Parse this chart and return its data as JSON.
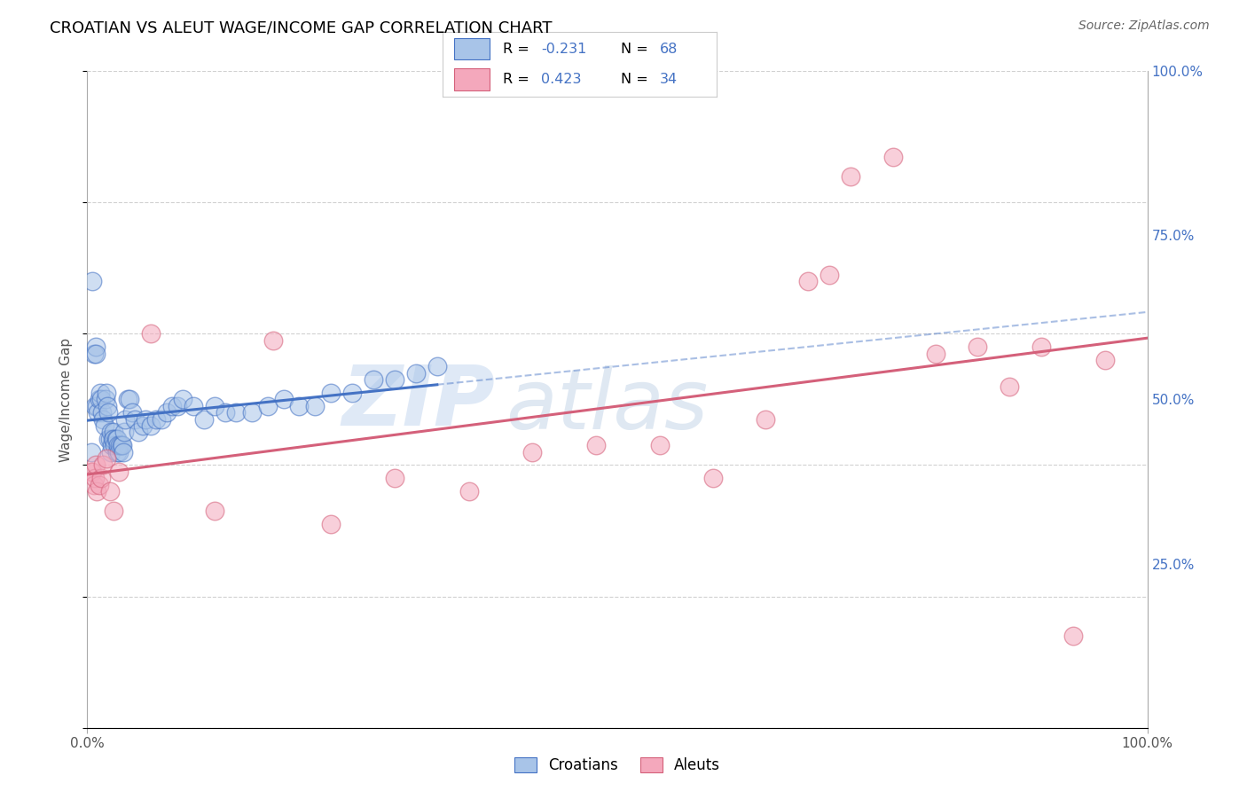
{
  "title": "CROATIAN VS ALEUT WAGE/INCOME GAP CORRELATION CHART",
  "source": "Source: ZipAtlas.com",
  "ylabel": "Wage/Income Gap",
  "xlim": [
    0.0,
    1.0
  ],
  "ylim": [
    0.0,
    1.0
  ],
  "watermark_zip": "ZIP",
  "watermark_atlas": "atlas",
  "croatian_color": "#a8c4e8",
  "aleut_color": "#f4a8bc",
  "croatian_line_color": "#4472c4",
  "aleut_line_color": "#d4607a",
  "legend_blue": "#4472c4",
  "R_croatian": "-0.231",
  "N_croatian": "68",
  "R_aleut": "0.423",
  "N_aleut": "34",
  "croatian_x": [
    0.004,
    0.005,
    0.006,
    0.007,
    0.008,
    0.008,
    0.009,
    0.01,
    0.011,
    0.012,
    0.013,
    0.014,
    0.015,
    0.016,
    0.017,
    0.018,
    0.019,
    0.02,
    0.02,
    0.021,
    0.022,
    0.022,
    0.023,
    0.024,
    0.025,
    0.025,
    0.026,
    0.027,
    0.028,
    0.028,
    0.029,
    0.03,
    0.031,
    0.032,
    0.033,
    0.034,
    0.035,
    0.036,
    0.038,
    0.04,
    0.042,
    0.045,
    0.048,
    0.052,
    0.055,
    0.06,
    0.065,
    0.07,
    0.075,
    0.08,
    0.085,
    0.09,
    0.1,
    0.11,
    0.12,
    0.13,
    0.14,
    0.155,
    0.17,
    0.185,
    0.2,
    0.215,
    0.23,
    0.25,
    0.27,
    0.29,
    0.31,
    0.33
  ],
  "croatian_y": [
    0.42,
    0.68,
    0.57,
    0.49,
    0.58,
    0.57,
    0.49,
    0.48,
    0.5,
    0.51,
    0.5,
    0.48,
    0.47,
    0.46,
    0.5,
    0.51,
    0.49,
    0.48,
    0.44,
    0.44,
    0.45,
    0.42,
    0.43,
    0.44,
    0.45,
    0.44,
    0.43,
    0.44,
    0.44,
    0.42,
    0.43,
    0.42,
    0.43,
    0.43,
    0.43,
    0.42,
    0.45,
    0.47,
    0.5,
    0.5,
    0.48,
    0.47,
    0.45,
    0.46,
    0.47,
    0.46,
    0.47,
    0.47,
    0.48,
    0.49,
    0.49,
    0.5,
    0.49,
    0.47,
    0.49,
    0.48,
    0.48,
    0.48,
    0.49,
    0.5,
    0.49,
    0.49,
    0.51,
    0.51,
    0.53,
    0.53,
    0.54,
    0.55
  ],
  "aleut_x": [
    0.004,
    0.005,
    0.006,
    0.007,
    0.008,
    0.009,
    0.011,
    0.013,
    0.015,
    0.018,
    0.021,
    0.025,
    0.03,
    0.06,
    0.12,
    0.175,
    0.23,
    0.29,
    0.36,
    0.42,
    0.48,
    0.54,
    0.59,
    0.64,
    0.68,
    0.7,
    0.72,
    0.76,
    0.8,
    0.84,
    0.87,
    0.9,
    0.93,
    0.96
  ],
  "aleut_y": [
    0.39,
    0.39,
    0.37,
    0.38,
    0.4,
    0.36,
    0.37,
    0.38,
    0.4,
    0.41,
    0.36,
    0.33,
    0.39,
    0.6,
    0.33,
    0.59,
    0.31,
    0.38,
    0.36,
    0.42,
    0.43,
    0.43,
    0.38,
    0.47,
    0.68,
    0.69,
    0.84,
    0.87,
    0.57,
    0.58,
    0.52,
    0.58,
    0.14,
    0.56
  ]
}
